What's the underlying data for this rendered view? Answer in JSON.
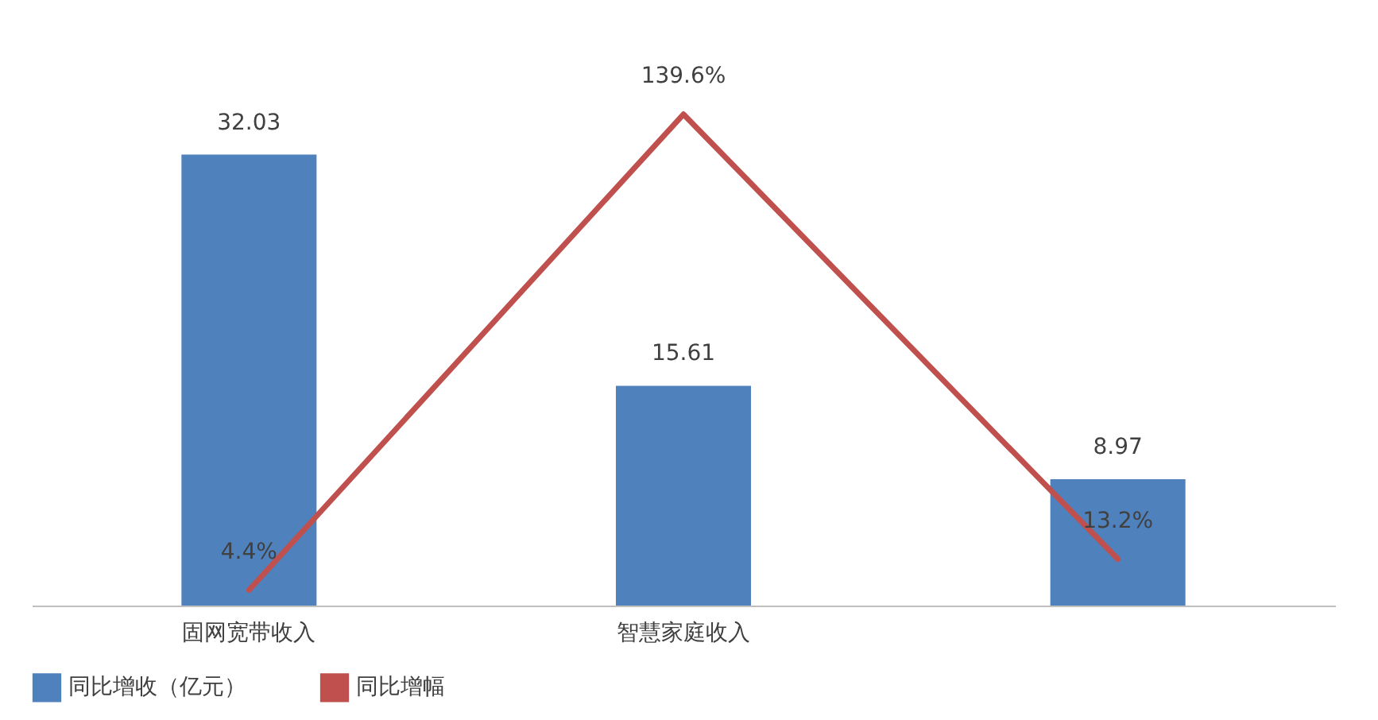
{
  "chart_data": {
    "type": "bar",
    "categories": [
      "固网宽带收入",
      "智慧家庭收入",
      null
    ],
    "series": [
      {
        "name": "同比增收（亿元）",
        "color": "#4f81bd",
        "values": [
          32.03,
          15.61,
          8.97
        ]
      },
      {
        "name": "同比增幅",
        "type": "line",
        "axis": "y2",
        "color": "#c0504d",
        "values": [
          4.4,
          139.6,
          13.2
        ],
        "value_labels": [
          "4.4%",
          "139.6%",
          "13.2%"
        ]
      }
    ],
    "data_labels": true,
    "legend": "bottom",
    "grid": false
  }
}
